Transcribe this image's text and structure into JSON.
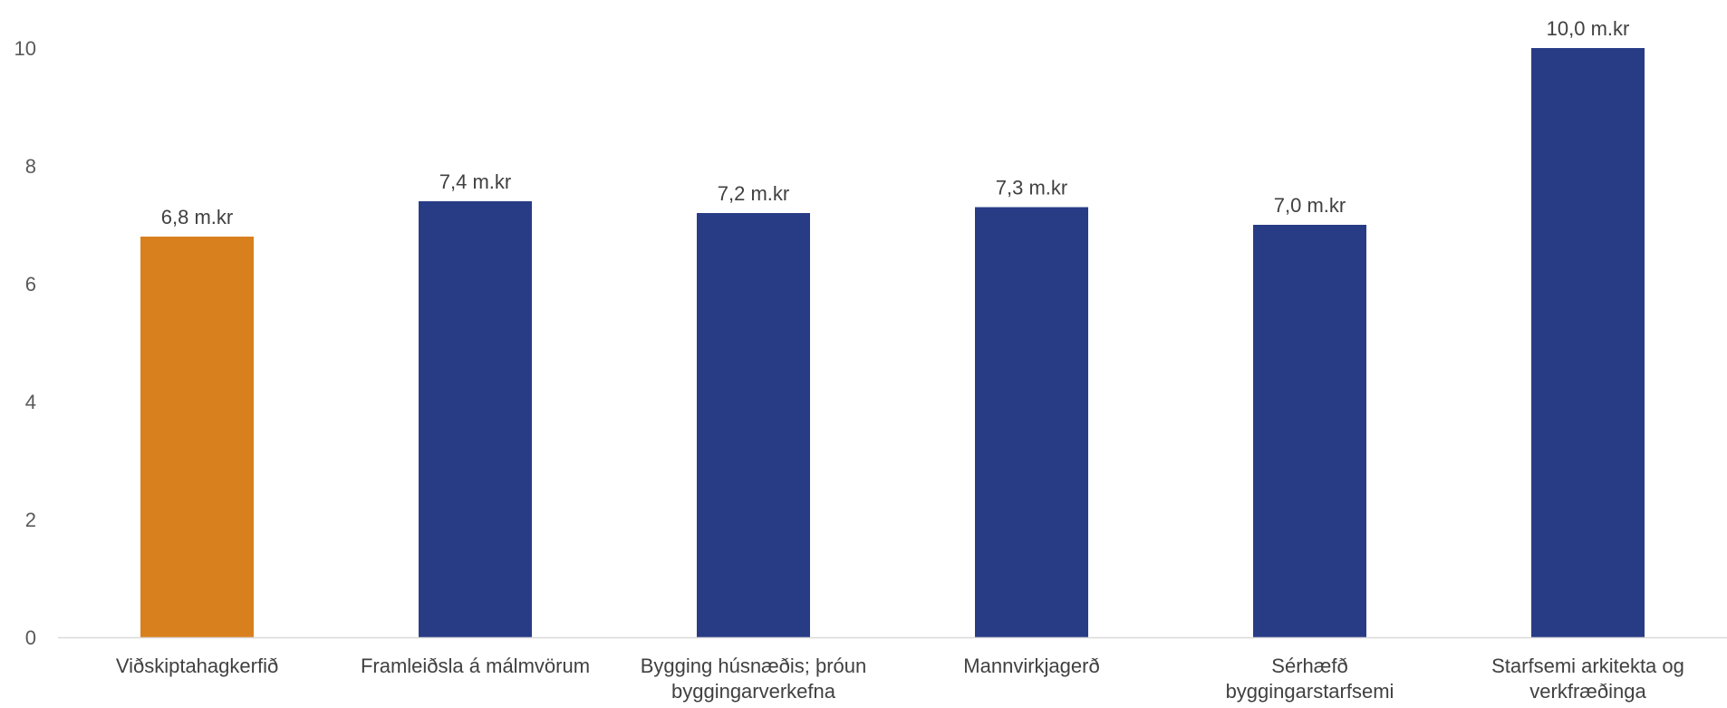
{
  "chart_data": {
    "type": "bar",
    "categories": [
      [
        "Viðskiptahagkerfið"
      ],
      [
        "Framleiðsla á málmvörum"
      ],
      [
        "Bygging húsnæðis; þróun",
        "byggingarverkefna"
      ],
      [
        "Mannvirkjagerð"
      ],
      [
        "Sérhæfð",
        "byggingarstarfsemi"
      ],
      [
        "Starfsemi arkitekta og",
        "verkfræðinga"
      ]
    ],
    "values": [
      6.8,
      7.4,
      7.2,
      7.3,
      7.0,
      10.0
    ],
    "data_labels": [
      "6,8 m.kr",
      "7,4 m.kr",
      "7,2 m.kr",
      "7,3 m.kr",
      "7,0 m.kr",
      "10,0 m.kr"
    ],
    "ylim": [
      0,
      10
    ],
    "yticks": [
      0,
      2,
      4,
      6,
      8,
      10
    ],
    "title": "",
    "xlabel": "",
    "ylabel": "",
    "grid": false,
    "colors": {
      "highlight": "#D9801E",
      "default": "#283C86",
      "axis": "#D9D9D9",
      "text": "#404040"
    },
    "highlight_index": 0
  }
}
